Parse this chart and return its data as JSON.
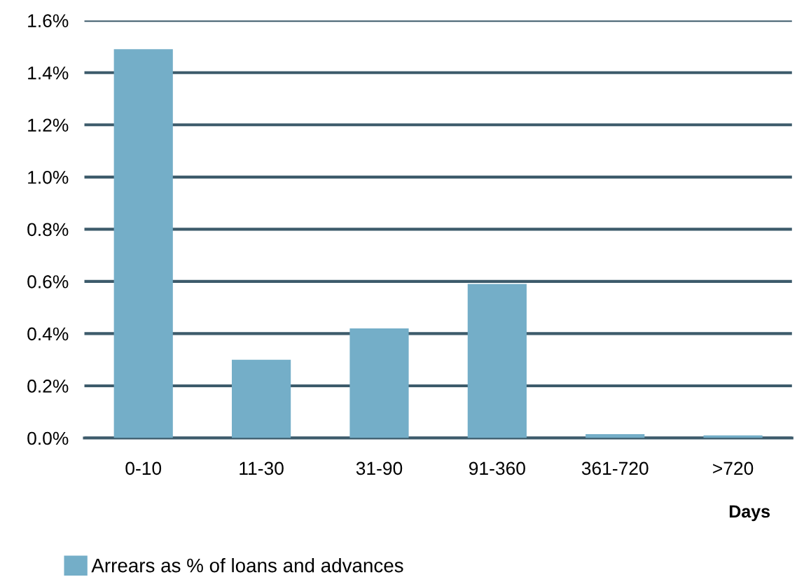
{
  "chart_data": {
    "type": "bar",
    "xlabel": "Days",
    "categories": [
      "0-10",
      "11-30",
      "31-90",
      "91-360",
      "361-720",
      ">720"
    ],
    "series": [
      {
        "name": "Arrears as % of loans and advances",
        "color": "#74aec8",
        "values": [
          1.49,
          0.3,
          0.42,
          0.59,
          0.015,
          0.01
        ]
      }
    ],
    "ylim": [
      0,
      1.6
    ],
    "yticks": [
      {
        "value": 0,
        "label": "0.0%"
      },
      {
        "value": 0.2,
        "label": "0.2%"
      },
      {
        "value": 0.4,
        "label": "0.4%"
      },
      {
        "value": 0.6,
        "label": "0.6%"
      },
      {
        "value": 0.8,
        "label": "0.8%"
      },
      {
        "value": 1.0,
        "label": "1.0%"
      },
      {
        "value": 1.2,
        "label": "1.2%"
      },
      {
        "value": 1.4,
        "label": "1.4%"
      },
      {
        "value": 1.6,
        "label": "1.6%"
      }
    ],
    "grid": "y",
    "legend": "bottom left"
  }
}
